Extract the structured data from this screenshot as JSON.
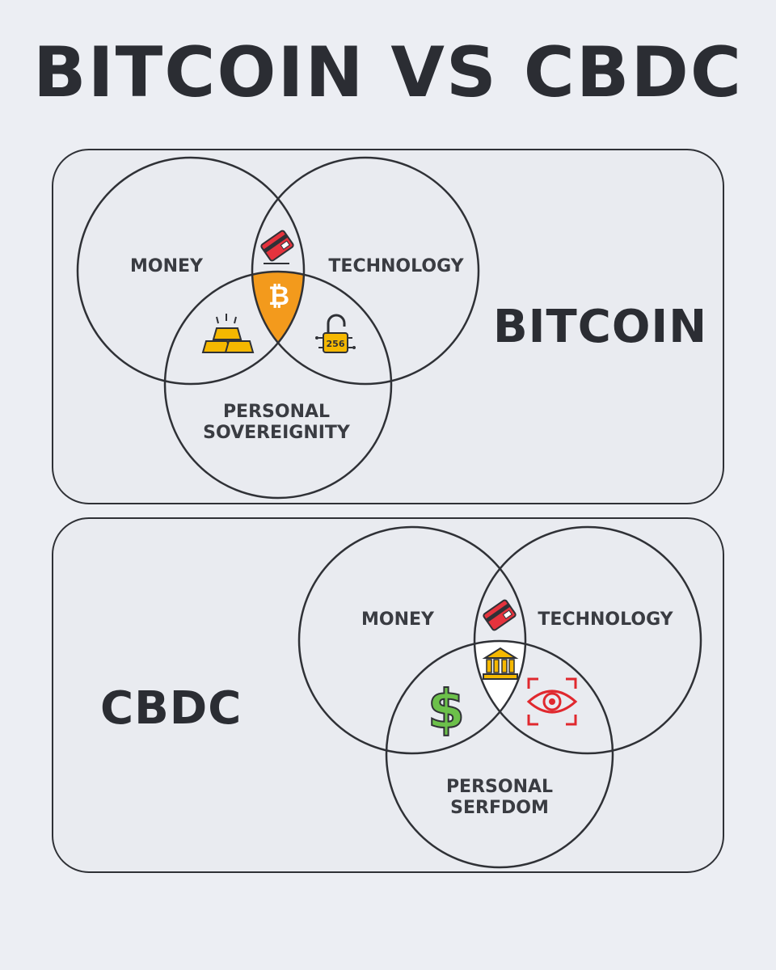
{
  "title": "BITCOIN VS CBDC",
  "bitcoin": {
    "name": "BITCOIN",
    "circle_labels": {
      "money": "MONEY",
      "technology": "TECHNOLOGY",
      "personal_line1": "PERSONAL",
      "personal_line2": "SOVEREIGNITY"
    },
    "lock_text": "256",
    "bitcoin_symbol": "₿",
    "center_color": "#f39a1c",
    "icons": [
      "credit-card-icon",
      "gold-bars-icon",
      "padlock-256-icon",
      "bitcoin-icon"
    ]
  },
  "cbdc": {
    "name": "CBDC",
    "circle_labels": {
      "money": "MONEY",
      "technology": "TECHNOLOGY",
      "personal_line1": "PERSONAL",
      "personal_line2": "SERFDOM"
    },
    "dollar_symbol": "$",
    "center_color": "#ffffff",
    "icons": [
      "credit-card-icon",
      "bank-icon",
      "dollar-icon",
      "surveillance-eye-icon"
    ]
  }
}
